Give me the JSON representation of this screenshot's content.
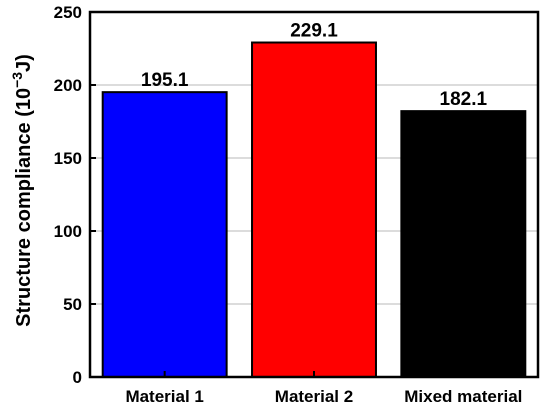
{
  "chart_data": {
    "type": "bar",
    "categories": [
      "Material 1",
      "Material 2",
      "Mixed material"
    ],
    "values": [
      195.1,
      229.1,
      182.1
    ],
    "data_labels": [
      "195.1",
      "229.1",
      "182.1"
    ],
    "ylabel": "Structure compliance (10",
    "ylabel_exponent": "−3",
    "ylabel_unit": "J)",
    "ylim": [
      0,
      250
    ],
    "yticks": [
      0,
      50,
      100,
      150,
      200,
      250
    ],
    "grid": "horizontal",
    "colors": [
      "#0000ff",
      "#ff0000",
      "#000000"
    ]
  }
}
